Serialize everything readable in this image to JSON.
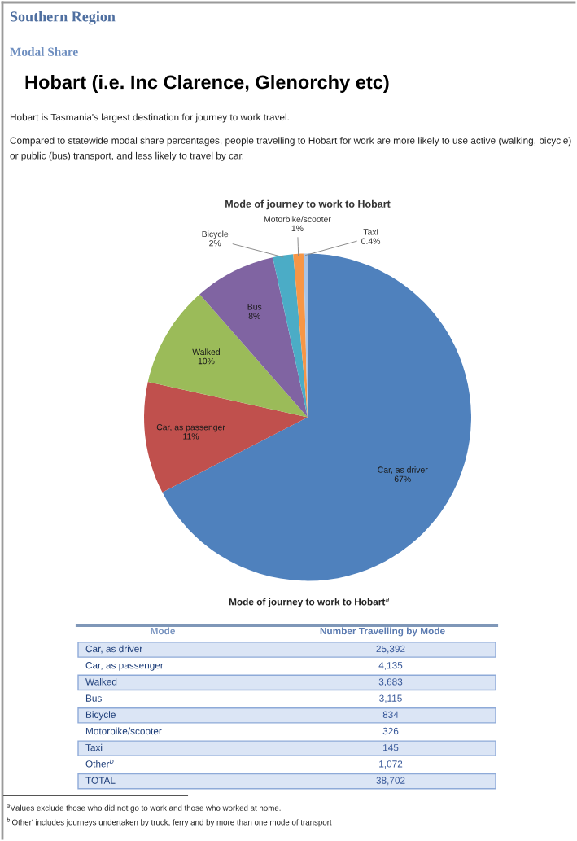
{
  "chart_data": {
    "type": "pie",
    "title": "Mode of journey to work to Hobart",
    "categories": [
      "Car, as driver",
      "Car, as passenger",
      "Walked",
      "Bus",
      "Bicycle",
      "Motorbike/scooter",
      "Taxi"
    ],
    "values": [
      67,
      11,
      10,
      8,
      2,
      1,
      0.4
    ],
    "colors": [
      "#4f81bd",
      "#c0504d",
      "#9bbb59",
      "#8064a2",
      "#4bacc6",
      "#f79646",
      "#a9c4e6"
    ],
    "value_labels": [
      "67%",
      "11%",
      "10%",
      "8%",
      "2%",
      "1%",
      "0.4%"
    ],
    "annotations": [
      "Southern Region",
      "Modal Share",
      "Hobart (i.e. Inc Clarence, Glenorchy etc)",
      "Hobart is Tasmania's largest destination for journey to work travel.",
      "Compared to statewide modal share percentages, people travelling to Hobart for work are more likely to use active (walking, bicycle) or public (bus) transport, and less likely to travel by car.",
      "Mode of journey to work to Hobart$^{a}$",
      "Mode",
      "Number Travelling by Mode",
      "Car, as driver",
      "25,392",
      "Car, as passenger",
      "4,135",
      "Walked",
      "3,683",
      "Bus",
      "3,115",
      "Bicycle",
      "834",
      "Motorbike/scooter",
      "326",
      "Taxi",
      "145",
      "Other$^{b}$",
      "1,072",
      "TOTAL",
      "38,702",
      "$^{a}$Values exclude those who did not go to work and those who worked at home.",
      "$^{b}$'Other' includes journeys undertaken by truck, ferry and by more than one mode of transport"
    ]
  }
}
